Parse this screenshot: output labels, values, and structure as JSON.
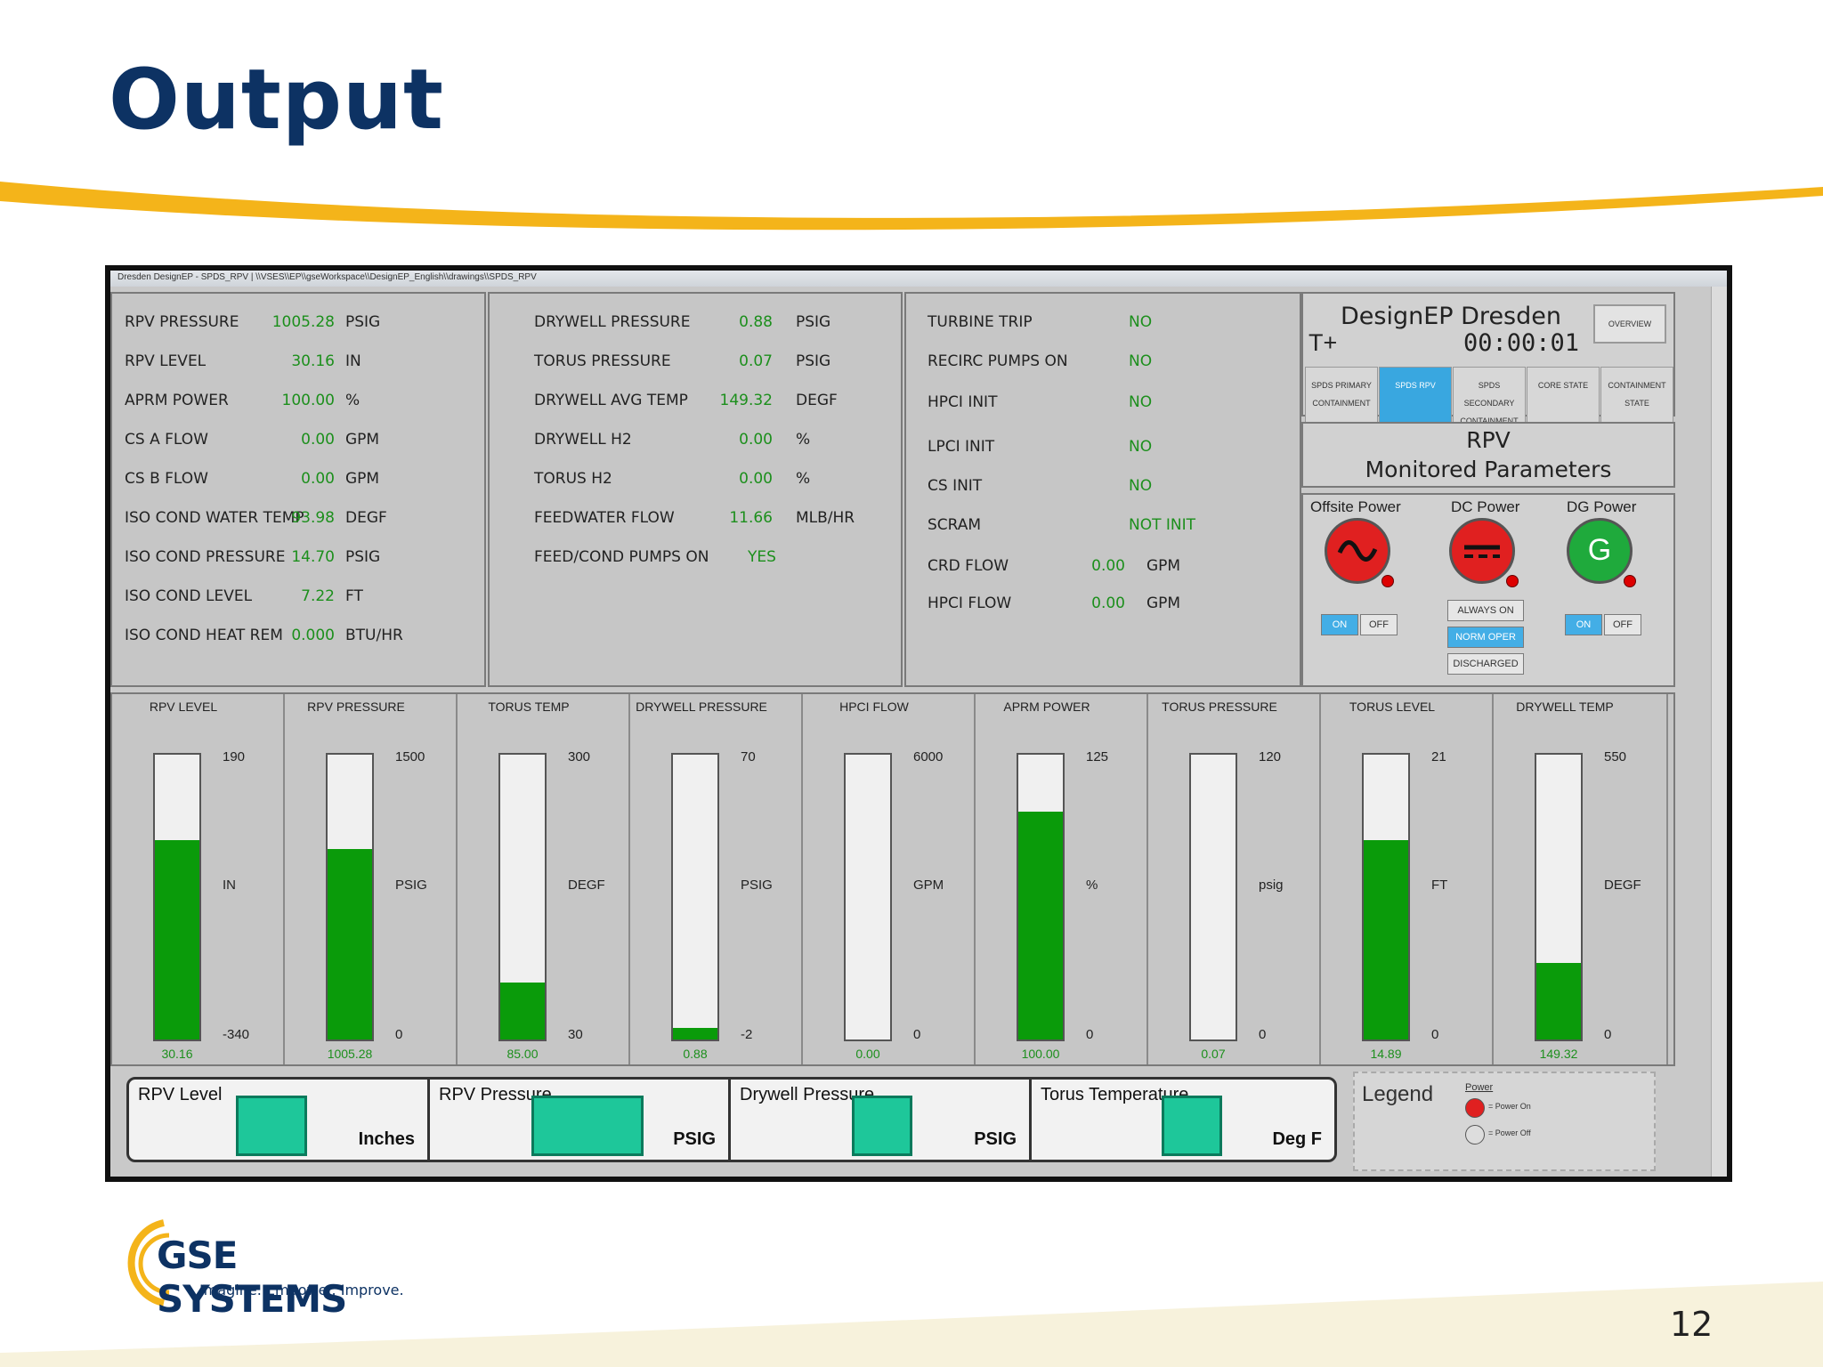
{
  "slide": {
    "title": "Output",
    "page_number": "12"
  },
  "logo": {
    "name": "GSE SYSTEMS",
    "tagline": "Imagine. Empower. Improve."
  },
  "window": {
    "title": "Dresden DesignEP - SPDS_RPV | \\\\VSES\\\\EP\\\\gseWorkspace\\\\DesignEP_English\\\\drawings\\\\SPDS_RPV"
  },
  "panel1": [
    {
      "label": "RPV PRESSURE",
      "value": "1005.28",
      "unit": "PSIG"
    },
    {
      "label": "RPV LEVEL",
      "value": "30.16",
      "unit": "IN"
    },
    {
      "label": "APRM POWER",
      "value": "100.00",
      "unit": "%"
    },
    {
      "label": "CS A FLOW",
      "value": "0.00",
      "unit": "GPM"
    },
    {
      "label": "CS B FLOW",
      "value": "0.00",
      "unit": "GPM"
    },
    {
      "label": "ISO COND WATER TEMP",
      "value": "93.98",
      "unit": "DEGF"
    },
    {
      "label": "ISO COND PRESSURE",
      "value": "14.70",
      "unit": "PSIG"
    },
    {
      "label": "ISO COND LEVEL",
      "value": "7.22",
      "unit": "FT"
    },
    {
      "label": "ISO COND HEAT REM",
      "value": "0.000",
      "unit": "BTU/HR"
    }
  ],
  "panel2": [
    {
      "label": "DRYWELL PRESSURE",
      "value": "0.88",
      "unit": "PSIG"
    },
    {
      "label": "TORUS PRESSURE",
      "value": "0.07",
      "unit": "PSIG"
    },
    {
      "label": "DRYWELL AVG TEMP",
      "value": "149.32",
      "unit": "DEGF"
    },
    {
      "label": "DRYWELL H2",
      "value": "0.00",
      "unit": "%"
    },
    {
      "label": "TORUS H2",
      "value": "0.00",
      "unit": "%"
    },
    {
      "label": "FEEDWATER FLOW",
      "value": "11.66",
      "unit": "MLB/HR"
    },
    {
      "label": "FEED/COND PUMPS ON",
      "value": "YES",
      "unit": ""
    }
  ],
  "panel3": [
    {
      "label": "TURBINE TRIP",
      "value": "NO",
      "unit": ""
    },
    {
      "label": "RECIRC PUMPS ON",
      "value": "NO",
      "unit": ""
    },
    {
      "label": "HPCI INIT",
      "value": "NO",
      "unit": ""
    },
    {
      "label": "LPCI INIT",
      "value": "NO",
      "unit": ""
    },
    {
      "label": "CS INIT",
      "value": "NO",
      "unit": ""
    },
    {
      "label": "SCRAM",
      "value": "NOT INIT",
      "unit": ""
    },
    {
      "label": "CRD FLOW",
      "value": "0.00",
      "unit": "GPM"
    },
    {
      "label": "HPCI FLOW",
      "value": "0.00",
      "unit": "GPM"
    }
  ],
  "designep": {
    "title": "DesignEP Dresden",
    "t_label": "T+",
    "time": "00:00:01",
    "overview": "OVERVIEW",
    "tabs": [
      {
        "label": "SPDS PRIMARY CONTAINMENT",
        "active": false
      },
      {
        "label": "SPDS RPV",
        "active": true
      },
      {
        "label": "SPDS SECONDARY CONTAINMENT",
        "active": false
      },
      {
        "label": "CORE STATE",
        "active": false
      },
      {
        "label": "CONTAINMENT STATE",
        "active": false
      }
    ],
    "section_line1": "RPV",
    "section_line2": "Monitored Parameters"
  },
  "power": {
    "offsite": {
      "label": "Offsite Power",
      "symbol": "~",
      "color": "#e02020",
      "on": "ON",
      "off": "OFF"
    },
    "dc": {
      "label": "DC Power",
      "symbol": "---",
      "color": "#e02020",
      "btn1": "ALWAYS ON",
      "btn2": "NORM OPER",
      "btn3": "DISCHARGED"
    },
    "dg": {
      "label": "DG Power",
      "symbol": "G",
      "color": "#1faa3c",
      "on": "ON",
      "off": "OFF"
    }
  },
  "gauges": [
    {
      "title": "RPV LEVEL",
      "max": "190",
      "unit": "IN",
      "min": "-340",
      "value": "30.16",
      "fill_fraction": 0.7
    },
    {
      "title": "RPV PRESSURE",
      "max": "1500",
      "unit": "PSIG",
      "min": "0",
      "value": "1005.28",
      "fill_fraction": 0.67
    },
    {
      "title": "TORUS TEMP",
      "max": "300",
      "unit": "DEGF",
      "min": "30",
      "value": "85.00",
      "fill_fraction": 0.2
    },
    {
      "title": "DRYWELL PRESSURE",
      "max": "70",
      "unit": "PSIG",
      "min": "-2",
      "value": "0.88",
      "fill_fraction": 0.04
    },
    {
      "title": "HPCI FLOW",
      "max": "6000",
      "unit": "GPM",
      "min": "0",
      "value": "0.00",
      "fill_fraction": 0.0
    },
    {
      "title": "APRM POWER",
      "max": "125",
      "unit": "%",
      "min": "0",
      "value": "100.00",
      "fill_fraction": 0.8
    },
    {
      "title": "TORUS PRESSURE",
      "max": "120",
      "unit": "psig",
      "min": "0",
      "value": "0.07",
      "fill_fraction": 0.0
    },
    {
      "title": "TORUS LEVEL",
      "max": "21",
      "unit": "FT",
      "min": "0",
      "value": "14.89",
      "fill_fraction": 0.7
    },
    {
      "title": "DRYWELL TEMP",
      "max": "550",
      "unit": "DEGF",
      "min": "0",
      "value": "149.32",
      "fill_fraction": 0.27
    }
  ],
  "trends": [
    {
      "name": "RPV Level",
      "unit": "Inches"
    },
    {
      "name": "RPV Pressure",
      "unit": "PSIG"
    },
    {
      "name": "Drywell Pressure",
      "unit": "PSIG"
    },
    {
      "name": "Torus Temperature",
      "unit": "Deg F"
    }
  ],
  "legend": {
    "title": "Legend",
    "heading": "Power",
    "item1": "= Power On",
    "item2": "= Power Off"
  },
  "colors": {
    "navy": "#0d3263",
    "accent_gold": "#f4b41a",
    "ok_green": "#1c8f1c",
    "bar_green": "#0a9b0a",
    "trend_teal": "#1ec79a"
  }
}
